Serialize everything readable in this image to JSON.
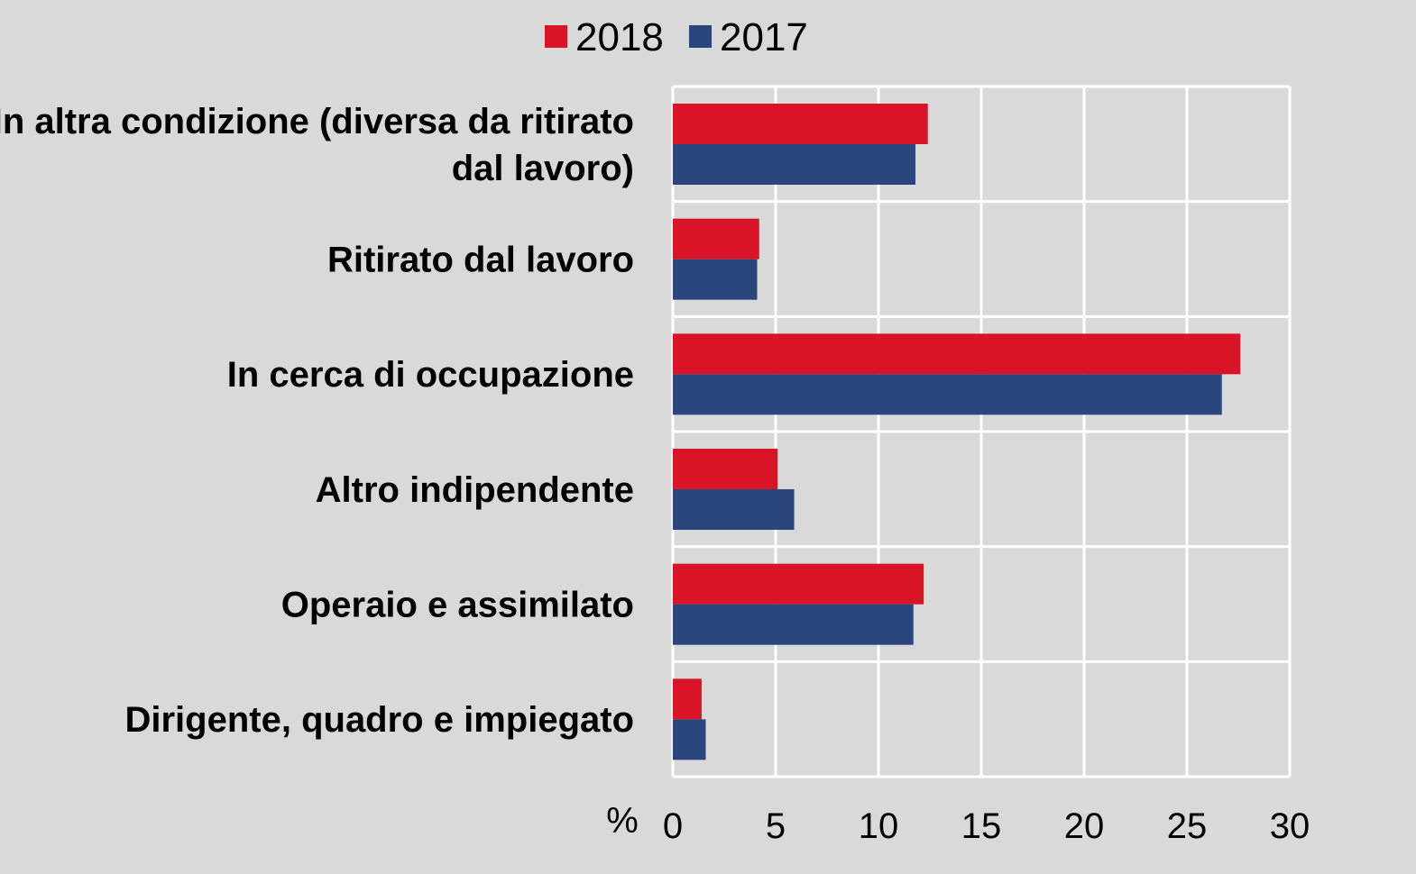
{
  "chart_data": {
    "type": "bar",
    "orientation": "horizontal",
    "categories": [
      [
        "In altra condizione (diversa da ritirato",
        "dal lavoro)"
      ],
      [
        "Ritirato dal lavoro"
      ],
      [
        "In cerca di occupazione"
      ],
      [
        "Altro indipendente"
      ],
      [
        "Operaio e assimilato"
      ],
      [
        "Dirigente, quadro e impiegato"
      ]
    ],
    "series": [
      {
        "name": "2018",
        "color": "#d81426",
        "values": [
          12.4,
          4.2,
          27.6,
          5.1,
          12.2,
          1.4
        ]
      },
      {
        "name": "2017",
        "color": "#2b467d",
        "values": [
          11.8,
          4.1,
          26.7,
          5.9,
          11.7,
          1.6
        ]
      }
    ],
    "xaxis": {
      "unit_label": "%",
      "min": 0,
      "max": 30,
      "ticks": [
        0,
        5,
        10,
        15,
        20,
        25,
        30
      ]
    },
    "grid": true,
    "legend_position": "top-center",
    "title": "",
    "xlabel": "",
    "ylabel": ""
  }
}
